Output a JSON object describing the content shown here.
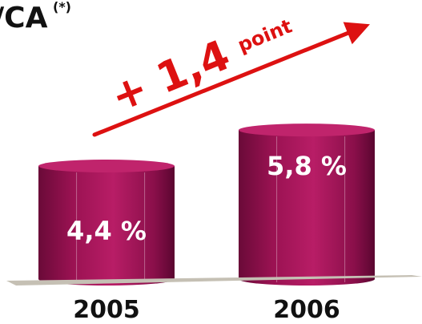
{
  "chart_data": {
    "type": "bar",
    "title": "/CA",
    "title_sup": "(*)",
    "categories": [
      "2005",
      "2006"
    ],
    "values": [
      4.4,
      5.8
    ],
    "value_labels": [
      "4,4 %",
      "5,8 %"
    ],
    "unit": "%",
    "annotation": {
      "value_text": "+ 1,4",
      "unit_text": "point"
    },
    "style": "3d-cylinder",
    "bar_color": "#a8155a",
    "bar_top_color": "#c0246c",
    "annotation_color": "#dd1111",
    "baseline_color": "#c5c0b4",
    "legend": false,
    "grid": false
  }
}
